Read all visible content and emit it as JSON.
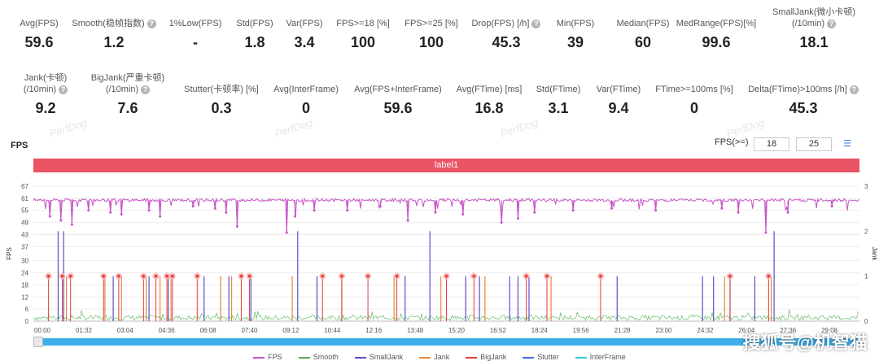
{
  "stats_row1": [
    {
      "label": "Avg(FPS)",
      "value": "59.6",
      "help": false
    },
    {
      "label": "Smooth(稳帧指数)",
      "value": "1.2",
      "help": true
    },
    {
      "label": "1%Low(FPS)",
      "value": "-",
      "help": false
    },
    {
      "label": "Std(FPS)",
      "value": "1.8",
      "help": false
    },
    {
      "label": "Var(FPS)",
      "value": "3.4",
      "help": false
    },
    {
      "label": "FPS>=18 [%]",
      "value": "100",
      "help": false
    },
    {
      "label": "FPS>=25 [%]",
      "value": "100",
      "help": false
    },
    {
      "label": "Drop(FPS) [/h]",
      "value": "45.3",
      "help": true
    },
    {
      "label": "Min(FPS)",
      "value": "39",
      "help": false
    },
    {
      "label": "Median(FPS)",
      "value": "60",
      "help": false
    },
    {
      "label": "MedRange(FPS)[%]",
      "value": "99.6",
      "help": false
    },
    {
      "label": "SmallJank(微小卡顿)",
      "label2": "(/10min)",
      "value": "18.1",
      "help": true
    }
  ],
  "stats_row2": [
    {
      "label": "Jank(卡顿)",
      "label2": "(/10min)",
      "value": "9.2",
      "help": true
    },
    {
      "label": "BigJank(严重卡顿)",
      "label2": "(/10min)",
      "value": "7.6",
      "help": true
    },
    {
      "label": "Stutter(卡顿率) [%]",
      "value": "0.3",
      "help": false
    },
    {
      "label": "Avg(InterFrame)",
      "value": "0",
      "help": false
    },
    {
      "label": "Avg(FPS+InterFrame)",
      "value": "59.6",
      "help": false
    },
    {
      "label": "Avg(FTime) [ms]",
      "value": "16.8",
      "help": false
    },
    {
      "label": "Std(FTime)",
      "value": "3.1",
      "help": false
    },
    {
      "label": "Var(FTime)",
      "value": "9.4",
      "help": false
    },
    {
      "label": "FTime>=100ms [%]",
      "value": "0",
      "help": false
    },
    {
      "label": "Delta(FTime)>100ms [/h]",
      "value": "45.3",
      "help": true
    }
  ],
  "watermark": "PerfDog",
  "chart": {
    "title": "FPS",
    "threshold_label": "FPS(>=)",
    "threshold_1": "18",
    "threshold_2": "25",
    "threshold_icon": "list-icon",
    "label_bar": "label1",
    "y_left_label": "FPS",
    "y_right_label": "Jank",
    "y_ticks": [
      "0",
      "6",
      "12",
      "18",
      "24",
      "30",
      "37",
      "43",
      "49",
      "55",
      "61",
      "67"
    ],
    "y_ticks_right": [
      "0",
      "1",
      "2",
      "3"
    ],
    "x_ticks": [
      "00:00",
      "01:32",
      "03:04",
      "04:36",
      "06:08",
      "07:40",
      "09:12",
      "10:44",
      "12:16",
      "13:48",
      "15:20",
      "16:52",
      "18:24",
      "19:56",
      "21:28",
      "23:00",
      "24:32",
      "26:04",
      "27:36",
      "29:08"
    ],
    "legend": [
      {
        "name": "FPS",
        "color": "#c653c6"
      },
      {
        "name": "Smooth",
        "color": "#4caf50"
      },
      {
        "name": "SmallJank",
        "color": "#5b4fc9"
      },
      {
        "name": "Jank",
        "color": "#e8893a"
      },
      {
        "name": "BigJank",
        "color": "#e23b3b"
      },
      {
        "name": "Stutter",
        "color": "#3b6fd6"
      },
      {
        "name": "InterFrame",
        "color": "#34c9d6"
      }
    ]
  },
  "chart_data": {
    "type": "line",
    "title": "FPS",
    "x_ticks": [
      "00:00",
      "01:32",
      "03:04",
      "04:36",
      "06:08",
      "07:40",
      "09:12",
      "10:44",
      "12:16",
      "13:48",
      "15:20",
      "16:52",
      "18:24",
      "19:56",
      "21:28",
      "23:00",
      "24:32",
      "26:04",
      "27:36",
      "29:08"
    ],
    "ylim": [
      0,
      67
    ],
    "ylim_right": [
      0,
      3
    ],
    "ylabel": "FPS",
    "ylabel_right": "Jank",
    "series": [
      {
        "name": "FPS",
        "axis": "left",
        "baseline": 60,
        "dips": [
          [
            0.6,
            52
          ],
          [
            1.0,
            50
          ],
          [
            1.4,
            48
          ],
          [
            2.0,
            55
          ],
          [
            2.8,
            54
          ],
          [
            3.2,
            53
          ],
          [
            4.2,
            55
          ],
          [
            4.6,
            52
          ],
          [
            5.8,
            57
          ],
          [
            6.6,
            56
          ],
          [
            7.0,
            54
          ],
          [
            7.4,
            47
          ],
          [
            9.2,
            44
          ],
          [
            9.5,
            52
          ],
          [
            10.2,
            55
          ],
          [
            11.4,
            55
          ],
          [
            12.6,
            57
          ],
          [
            13.6,
            50
          ],
          [
            14.6,
            54
          ],
          [
            15.6,
            53
          ],
          [
            17.0,
            49
          ],
          [
            17.6,
            51
          ],
          [
            18.2,
            54
          ],
          [
            19.6,
            55
          ],
          [
            21.0,
            56
          ],
          [
            22.6,
            55
          ],
          [
            25.0,
            56
          ],
          [
            25.6,
            54
          ],
          [
            26.6,
            44
          ],
          [
            27.4,
            54
          ],
          [
            29.0,
            57
          ]
        ]
      },
      {
        "name": "SmallJank",
        "axis": "right",
        "spikes": [
          [
            0.9,
            2
          ],
          [
            1.1,
            2
          ],
          [
            2.9,
            1
          ],
          [
            4.2,
            1
          ],
          [
            4.9,
            1
          ],
          [
            6.2,
            1
          ],
          [
            7.1,
            1
          ],
          [
            7.9,
            1
          ],
          [
            9.6,
            2
          ],
          [
            10.3,
            1
          ],
          [
            13.5,
            1
          ],
          [
            14.4,
            2
          ],
          [
            15.7,
            1
          ],
          [
            16.2,
            1
          ],
          [
            17.3,
            1
          ],
          [
            17.6,
            1
          ],
          [
            18.0,
            1
          ],
          [
            21.2,
            1
          ],
          [
            24.3,
            1
          ],
          [
            24.7,
            1
          ],
          [
            25.3,
            1
          ],
          [
            26.2,
            1
          ],
          [
            26.9,
            2
          ]
        ]
      },
      {
        "name": "Jank",
        "axis": "right",
        "spikes": [
          [
            1.2,
            1
          ],
          [
            2.6,
            1
          ],
          [
            3.2,
            1
          ],
          [
            4.1,
            1
          ],
          [
            4.6,
            1
          ],
          [
            5.0,
            1
          ],
          [
            6.8,
            1
          ],
          [
            7.2,
            1
          ],
          [
            9.4,
            1
          ],
          [
            11.2,
            1
          ],
          [
            13.1,
            1
          ],
          [
            14.8,
            1
          ],
          [
            16.4,
            1
          ],
          [
            18.8,
            1
          ],
          [
            25.1,
            1
          ],
          [
            26.8,
            1
          ]
        ]
      },
      {
        "name": "BigJank",
        "axis": "right",
        "markers": [
          0.55,
          1.05,
          1.35,
          2.55,
          3.1,
          4.0,
          4.45,
          4.85,
          5.05,
          5.95,
          7.55,
          7.85,
          10.5,
          11.2,
          12.15,
          13.2,
          15.0,
          16.0,
          17.9,
          18.65,
          20.6,
          25.3,
          26.7
        ]
      }
    ]
  },
  "branding": "搜狐号@机智猫"
}
